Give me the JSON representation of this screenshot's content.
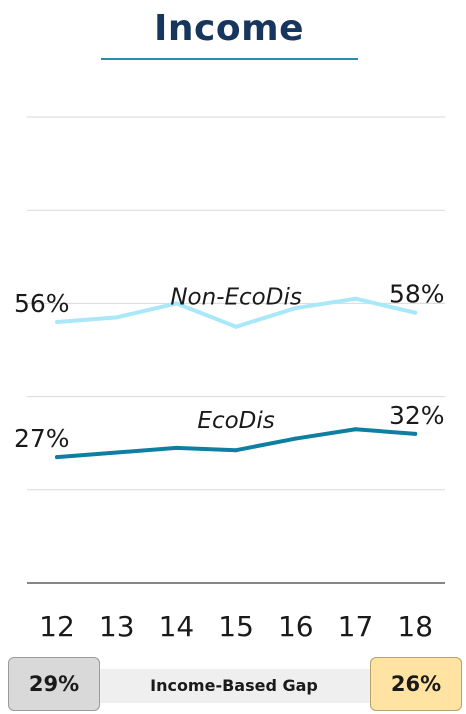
{
  "header": {
    "title": "Income"
  },
  "chart_data": {
    "type": "line",
    "title": "Income",
    "categories": [
      "12",
      "13",
      "14",
      "15",
      "16",
      "17",
      "18"
    ],
    "ylim": [
      0,
      100
    ],
    "grid": true,
    "series": [
      {
        "name": "Non-EcoDis",
        "values": [
          56,
          57,
          60,
          55,
          59,
          61,
          58
        ],
        "color": "#a8e8f8",
        "start_label": "56%",
        "end_label": "58%"
      },
      {
        "name": "EcoDis",
        "values": [
          27,
          28,
          29,
          28.5,
          31,
          33,
          32
        ],
        "color": "#0e7fa0",
        "start_label": "27%",
        "end_label": "32%"
      }
    ]
  },
  "footer": {
    "gap_label": "Income-Based Gap",
    "gap_start": "29%",
    "gap_end": "26%"
  }
}
